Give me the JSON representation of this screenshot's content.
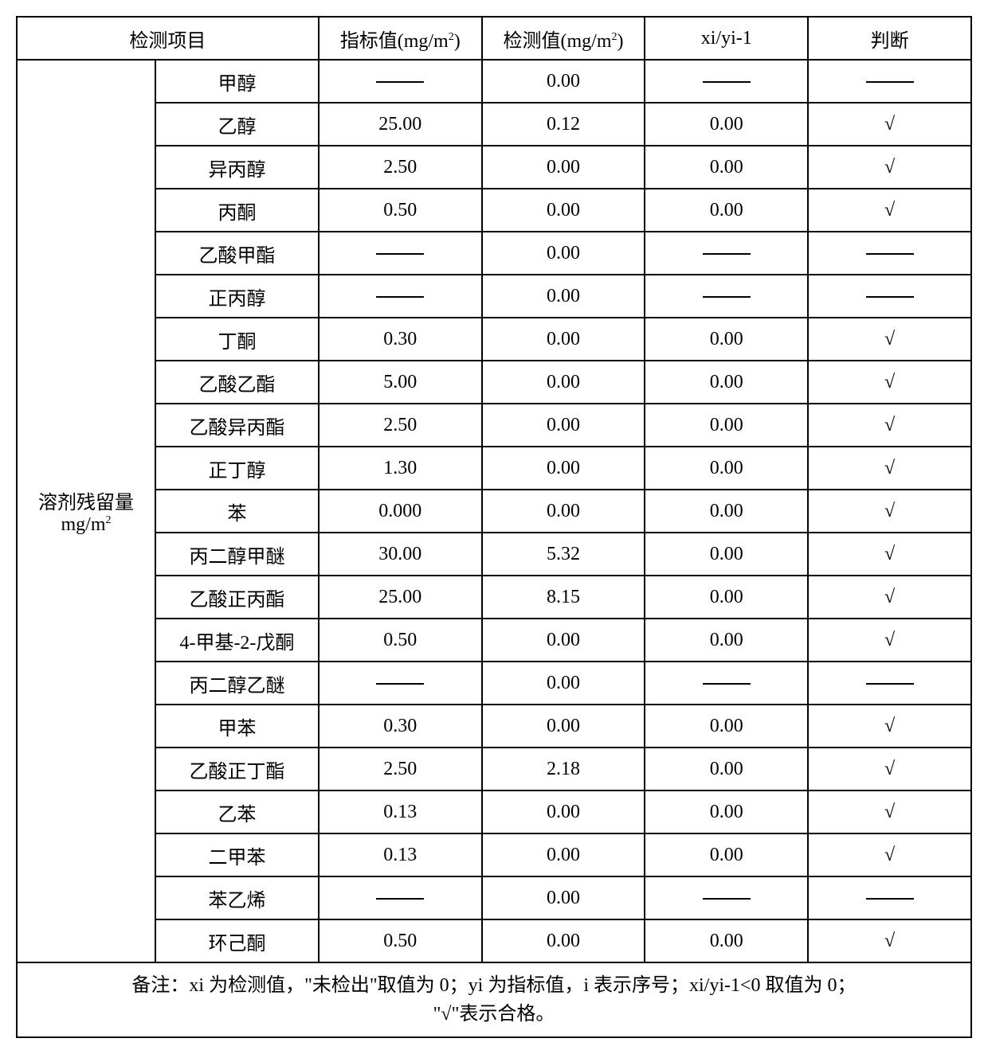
{
  "header": {
    "col1": "检测项目",
    "col2": "指标值(mg/m",
    "col2_sup": "2",
    "col2_tail": ")",
    "col3": "检测值(mg/m",
    "col3_sup": "2",
    "col3_tail": ")",
    "col4": "xi/yi-1",
    "col5": "判断"
  },
  "category": {
    "line1": "溶剂残留量",
    "line2": "mg/m",
    "sup": "2"
  },
  "dash": "——",
  "check": "√",
  "rows": [
    {
      "item": "甲醇",
      "std": "——",
      "det": "0.00",
      "ratio": "——",
      "judge": "——"
    },
    {
      "item": "乙醇",
      "std": "25.00",
      "det": "0.12",
      "ratio": "0.00",
      "judge": "√"
    },
    {
      "item": "异丙醇",
      "std": "2.50",
      "det": "0.00",
      "ratio": "0.00",
      "judge": "√"
    },
    {
      "item": "丙酮",
      "std": "0.50",
      "det": "0.00",
      "ratio": "0.00",
      "judge": "√"
    },
    {
      "item": "乙酸甲酯",
      "std": "——",
      "det": "0.00",
      "ratio": "——",
      "judge": "——"
    },
    {
      "item": "正丙醇",
      "std": "——",
      "det": "0.00",
      "ratio": "——",
      "judge": "——"
    },
    {
      "item": "丁酮",
      "std": "0.30",
      "det": "0.00",
      "ratio": "0.00",
      "judge": "√"
    },
    {
      "item": "乙酸乙酯",
      "std": "5.00",
      "det": "0.00",
      "ratio": "0.00",
      "judge": "√"
    },
    {
      "item": "乙酸异丙酯",
      "std": "2.50",
      "det": "0.00",
      "ratio": "0.00",
      "judge": "√"
    },
    {
      "item": "正丁醇",
      "std": "1.30",
      "det": "0.00",
      "ratio": "0.00",
      "judge": "√"
    },
    {
      "item": "苯",
      "std": "0.000",
      "det": "0.00",
      "ratio": "0.00",
      "judge": "√"
    },
    {
      "item": "丙二醇甲醚",
      "std": "30.00",
      "det": "5.32",
      "ratio": "0.00",
      "judge": "√"
    },
    {
      "item": "乙酸正丙酯",
      "std": "25.00",
      "det": "8.15",
      "ratio": "0.00",
      "judge": "√"
    },
    {
      "item": "4-甲基-2-戊酮",
      "std": "0.50",
      "det": "0.00",
      "ratio": "0.00",
      "judge": "√"
    },
    {
      "item": "丙二醇乙醚",
      "std": "——",
      "det": "0.00",
      "ratio": "——",
      "judge": "——"
    },
    {
      "item": "甲苯",
      "std": "0.30",
      "det": "0.00",
      "ratio": "0.00",
      "judge": "√"
    },
    {
      "item": "乙酸正丁酯",
      "std": "2.50",
      "det": "2.18",
      "ratio": "0.00",
      "judge": "√"
    },
    {
      "item": "乙苯",
      "std": "0.13",
      "det": "0.00",
      "ratio": "0.00",
      "judge": "√"
    },
    {
      "item": "二甲苯",
      "std": "0.13",
      "det": "0.00",
      "ratio": "0.00",
      "judge": "√"
    },
    {
      "item": "苯乙烯",
      "std": "——",
      "det": "0.00",
      "ratio": "——",
      "judge": "——"
    },
    {
      "item": "环己酮",
      "std": "0.50",
      "det": "0.00",
      "ratio": "0.00",
      "judge": "√"
    }
  ],
  "footnote": {
    "line1": "备注：xi 为检测值，\"未检出\"取值为 0；yi 为指标值，i 表示序号；xi/yi-1<0 取值为 0；",
    "line2": "\"√\"表示合格。"
  }
}
